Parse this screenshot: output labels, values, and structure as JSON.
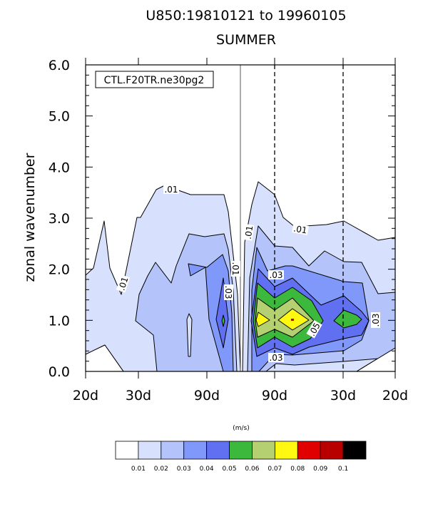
{
  "chart_data": {
    "type": "heatmap",
    "subtype": "filled-contour",
    "title": "U850:19810121 to 19960105",
    "subtitle": "SUMMER",
    "ylabel": "zonal wavenumber",
    "xlabel": "",
    "ylim": [
      0,
      6
    ],
    "yticks": [
      "0.0",
      "1.0",
      "2.0",
      "3.0",
      "4.0",
      "5.0",
      "6.0"
    ],
    "xticks": [
      "20d",
      "30d",
      "90d",
      "90d",
      "30d",
      "20d"
    ],
    "legend_box": "CTL.F20TR.ne30pg2",
    "units": "(m/s)",
    "levels": [
      "0.01",
      "0.02",
      "0.03",
      "0.04",
      "0.05",
      "0.06",
      "0.07",
      "0.08",
      "0.09",
      "0.1"
    ],
    "colors": [
      "#ffffff",
      "#d7e0fc",
      "#b4c4fb",
      "#8098fa",
      "#6070f0",
      "#3cb83c",
      "#b4d070",
      "#fff810",
      "#e00000",
      "#b80000",
      "#000000"
    ],
    "contour_labels": [
      ".01",
      ".01",
      ".01",
      ".01",
      ".01",
      ".03",
      ".03",
      ".03",
      ".03",
      ".05"
    ],
    "peaks": [
      {
        "wavenumber": 1.0,
        "side": "eastward 90d-30d",
        "max": 0.08
      },
      {
        "wavenumber": 1.0,
        "side": "westward ~90d",
        "max": 0.05
      }
    ]
  }
}
